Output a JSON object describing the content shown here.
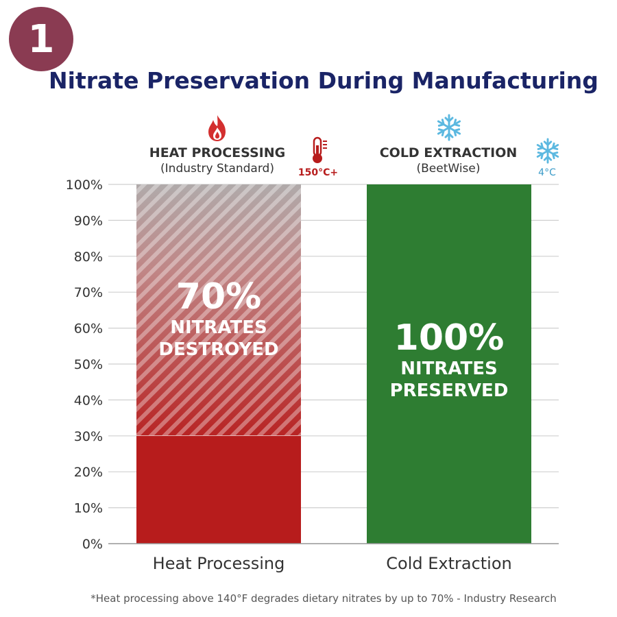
{
  "badge": {
    "number": "1"
  },
  "colors": {
    "heat": "#b71c1c",
    "cold": "#2e7d32",
    "title": "#1a2466",
    "badge": "#8a3b52"
  },
  "chart_data": {
    "type": "bar",
    "title": "Nitrate Preservation During Manufacturing",
    "categories": [
      "Heat Processing",
      "Cold Extraction"
    ],
    "series": [
      {
        "name": "",
        "values": [
          30,
          100
        ]
      }
    ],
    "destroyed": [
      70,
      0
    ],
    "ylim": [
      0,
      100
    ],
    "yticks": [
      "0%",
      "10%",
      "20%",
      "30%",
      "40%",
      "50%",
      "60%",
      "70%",
      "80%",
      "90%",
      "100%"
    ],
    "grid": true,
    "bar_labels": [
      {
        "value": "70%",
        "line1": "NITRATES",
        "line2": "DESTROYED"
      },
      {
        "value": "100%",
        "line1": "NITRATES",
        "line2": "PRESERVED"
      }
    ]
  },
  "headers": {
    "heat": {
      "label": "HEAT PROCESSING",
      "sub": "(Industry Standard)",
      "temp": "150°C+",
      "icon": "flame-icon",
      "temp_icon": "thermometer-icon"
    },
    "cold": {
      "label": "COLD EXTRACTION",
      "sub": "(BeetWise)",
      "temp": "4°C",
      "icon": "snowflake-icon",
      "temp_icon": "snowflake-icon"
    }
  },
  "footnote": "*Heat processing above 140°F degrades dietary nitrates by up to 70% - Industry Research"
}
